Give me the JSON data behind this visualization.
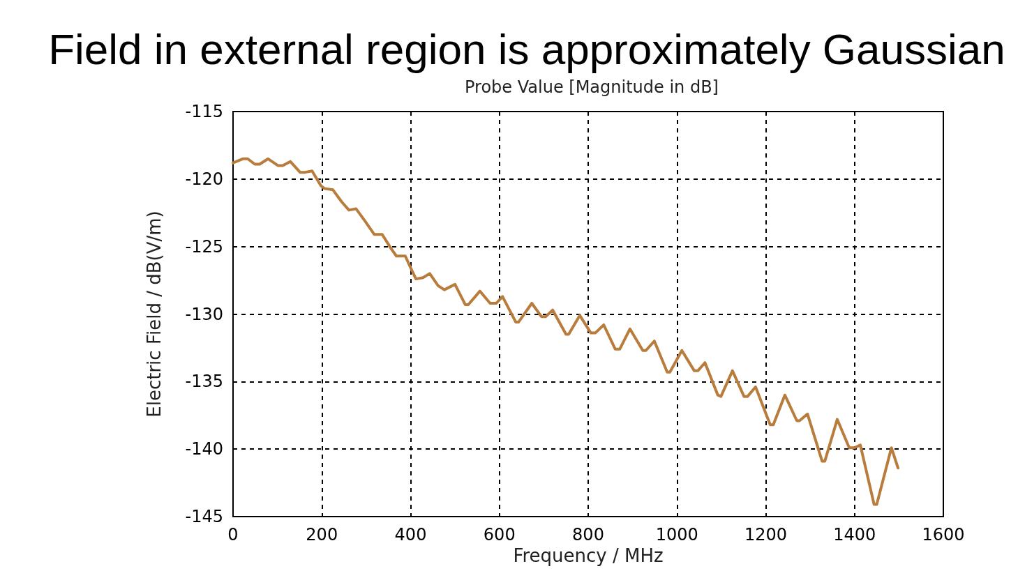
{
  "chart_data": {
    "type": "line",
    "title": "Field in external region is approximately Gaussian",
    "subtitle": "Probe Value [Magnitude in dB]",
    "xlabel": "Frequency / MHz",
    "ylabel": "Electric Field / dB(V/m)",
    "xlim": [
      0,
      1600
    ],
    "xticks": [
      0,
      200,
      400,
      600,
      800,
      1000,
      1200,
      1400,
      1600
    ],
    "ylim": [
      -145,
      -115
    ],
    "yticks": [
      -145,
      -140,
      -135,
      -130,
      -125,
      -120,
      -115
    ],
    "grid": true,
    "marker": "none",
    "line_style": "solid",
    "series": [
      {
        "color": "#b87c3c",
        "x": [
          0,
          22,
          33,
          49,
          60,
          79,
          101,
          112,
          129,
          151,
          162,
          178,
          198,
          206,
          225,
          245,
          261,
          277,
          297,
          318,
          336,
          355,
          368,
          388,
          399,
          412,
          428,
          443,
          462,
          476,
          500,
          523,
          530,
          556,
          579,
          593,
          607,
          637,
          643,
          673,
          695,
          704,
          720,
          750,
          756,
          781,
          806,
          816,
          835,
          861,
          871,
          894,
          923,
          930,
          949,
          978,
          984,
          1011,
          1039,
          1047,
          1063,
          1092,
          1099,
          1125,
          1151,
          1159,
          1177,
          1210,
          1217,
          1243,
          1270,
          1276,
          1294,
          1327,
          1333,
          1361,
          1388,
          1400,
          1413,
          1444,
          1450,
          1483,
          1498
        ],
        "values": [
          -118.8,
          -118.5,
          -118.5,
          -118.9,
          -118.9,
          -118.5,
          -119.0,
          -119.0,
          -118.7,
          -119.5,
          -119.5,
          -119.4,
          -120.5,
          -120.7,
          -120.8,
          -121.7,
          -122.3,
          -122.2,
          -123.1,
          -124.1,
          -124.1,
          -125.1,
          -125.7,
          -125.7,
          -126.5,
          -127.4,
          -127.3,
          -127.0,
          -127.9,
          -128.2,
          -127.8,
          -129.3,
          -129.3,
          -128.3,
          -129.2,
          -129.2,
          -128.7,
          -130.6,
          -130.6,
          -129.2,
          -130.2,
          -130.2,
          -129.7,
          -131.5,
          -131.5,
          -130.1,
          -131.4,
          -131.4,
          -130.8,
          -132.6,
          -132.6,
          -131.1,
          -132.7,
          -132.7,
          -132.0,
          -134.3,
          -134.3,
          -132.7,
          -134.2,
          -134.2,
          -133.6,
          -136.0,
          -136.1,
          -134.2,
          -136.1,
          -136.1,
          -135.4,
          -138.2,
          -138.2,
          -136.0,
          -137.9,
          -137.9,
          -137.4,
          -140.9,
          -140.9,
          -137.8,
          -139.9,
          -139.9,
          -139.7,
          -144.1,
          -144.1,
          -139.9,
          -141.4
        ]
      }
    ]
  }
}
